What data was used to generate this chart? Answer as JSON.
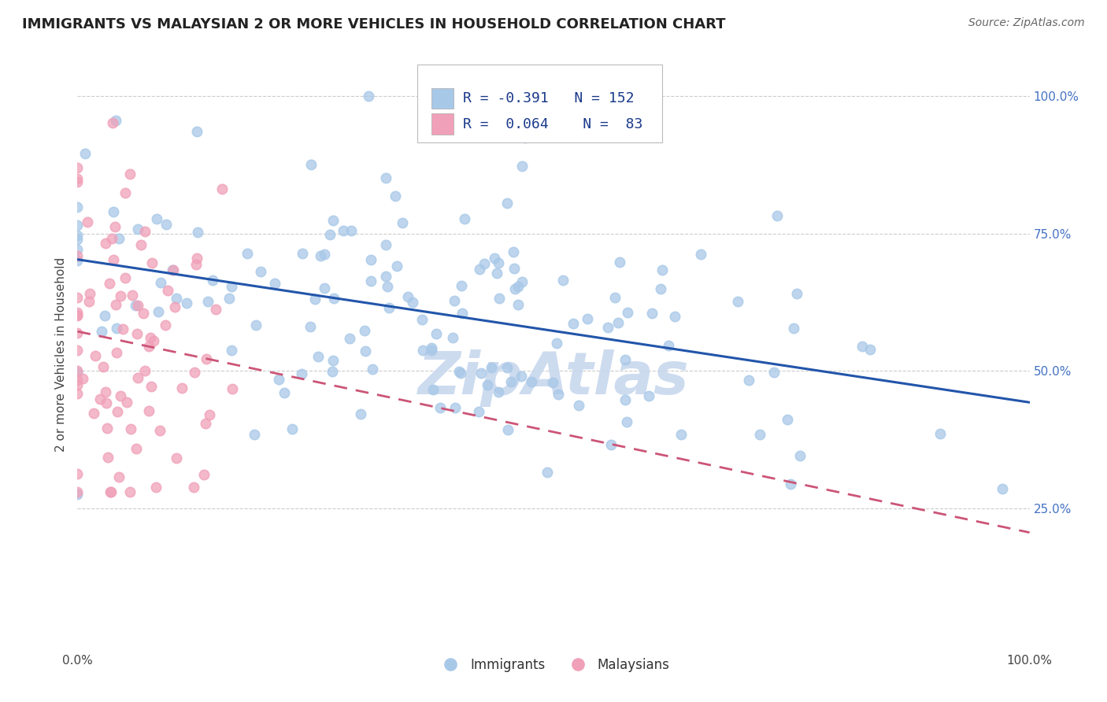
{
  "title": "IMMIGRANTS VS MALAYSIAN 2 OR MORE VEHICLES IN HOUSEHOLD CORRELATION CHART",
  "source_text": "Source: ZipAtlas.com",
  "ylabel": "2 or more Vehicles in Household",
  "immigrants_R": -0.391,
  "immigrants_N": 152,
  "malaysians_R": 0.064,
  "malaysians_N": 83,
  "immigrants_color": "#a8c8e8",
  "immigrants_line_color": "#2255aa",
  "malaysians_color": "#f0a0b8",
  "malaysians_line_color": "#cc5577",
  "background_color": "#ffffff",
  "watermark_text": "ZipAtlas",
  "watermark_color": "#c8d8ee",
  "legend_label_immigrants": "Immigrants",
  "legend_label_malaysians": "Malaysians",
  "title_fontsize": 13,
  "right_tick_color": "#4472c4",
  "grid_color": "#cccccc",
  "seed_immigrants": 42,
  "seed_malaysians": 7
}
